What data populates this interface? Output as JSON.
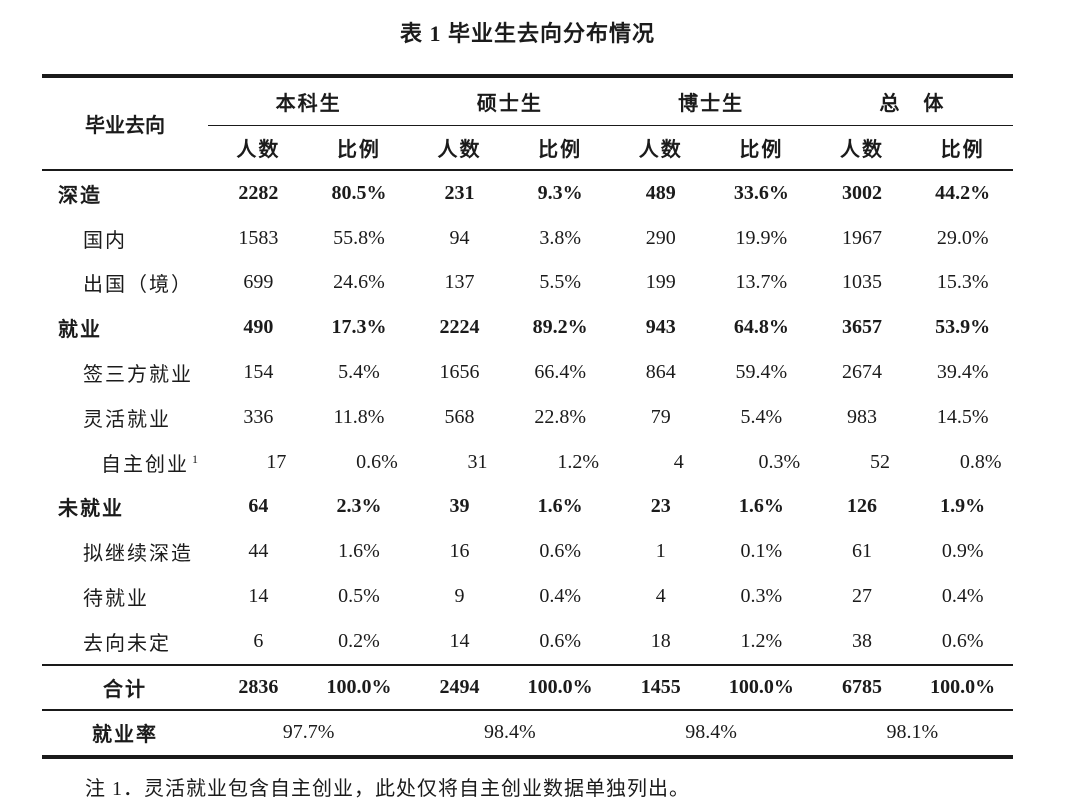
{
  "title": "表 1 毕业生去向分布情况",
  "table": {
    "corner_header": "毕业去向",
    "groups": [
      "本科生",
      "硕士生",
      "博士生",
      "总　体"
    ],
    "sub_headers": [
      "人数",
      "比例"
    ],
    "rows": [
      {
        "label": "深造",
        "level": 0,
        "bold": true,
        "values": [
          "2282",
          "80.5%",
          "231",
          "9.3%",
          "489",
          "33.6%",
          "3002",
          "44.2%"
        ]
      },
      {
        "label": "国内",
        "level": 1,
        "bold": false,
        "values": [
          "1583",
          "55.8%",
          "94",
          "3.8%",
          "290",
          "19.9%",
          "1967",
          "29.0%"
        ]
      },
      {
        "label": "出国（境）",
        "level": 1,
        "bold": false,
        "values": [
          "699",
          "24.6%",
          "137",
          "5.5%",
          "199",
          "13.7%",
          "1035",
          "15.3%"
        ]
      },
      {
        "label": "就业",
        "level": 0,
        "bold": true,
        "values": [
          "490",
          "17.3%",
          "2224",
          "89.2%",
          "943",
          "64.8%",
          "3657",
          "53.9%"
        ]
      },
      {
        "label": "签三方就业",
        "level": 1,
        "bold": false,
        "values": [
          "154",
          "5.4%",
          "1656",
          "66.4%",
          "864",
          "59.4%",
          "2674",
          "39.4%"
        ]
      },
      {
        "label": "灵活就业",
        "level": 1,
        "bold": false,
        "values": [
          "336",
          "11.8%",
          "568",
          "22.8%",
          "79",
          "5.4%",
          "983",
          "14.5%"
        ]
      },
      {
        "label": "自主创业",
        "sup": "1",
        "level": 2,
        "bold": false,
        "values": [
          "17",
          "0.6%",
          "31",
          "1.2%",
          "4",
          "0.3%",
          "52",
          "0.8%"
        ]
      },
      {
        "label": "未就业",
        "level": 0,
        "bold": true,
        "values": [
          "64",
          "2.3%",
          "39",
          "1.6%",
          "23",
          "1.6%",
          "126",
          "1.9%"
        ]
      },
      {
        "label": "拟继续深造",
        "level": 1,
        "bold": false,
        "values": [
          "44",
          "1.6%",
          "16",
          "0.6%",
          "1",
          "0.1%",
          "61",
          "0.9%"
        ]
      },
      {
        "label": "待就业",
        "level": 1,
        "bold": false,
        "values": [
          "14",
          "0.5%",
          "9",
          "0.4%",
          "4",
          "0.3%",
          "27",
          "0.4%"
        ]
      },
      {
        "label": "去向未定",
        "level": 1,
        "bold": false,
        "values": [
          "6",
          "0.2%",
          "14",
          "0.6%",
          "18",
          "1.2%",
          "38",
          "0.6%"
        ]
      }
    ],
    "total_row": {
      "label": "合计",
      "values": [
        "2836",
        "100.0%",
        "2494",
        "100.0%",
        "1455",
        "100.0%",
        "6785",
        "100.0%"
      ]
    },
    "employment_rate_row": {
      "label": "就业率",
      "values": [
        "97.7%",
        "98.4%",
        "98.4%",
        "98.1%"
      ]
    }
  },
  "footnote": "注 1．灵活就业包含自主创业，此处仅将自主创业数据单独列出。"
}
